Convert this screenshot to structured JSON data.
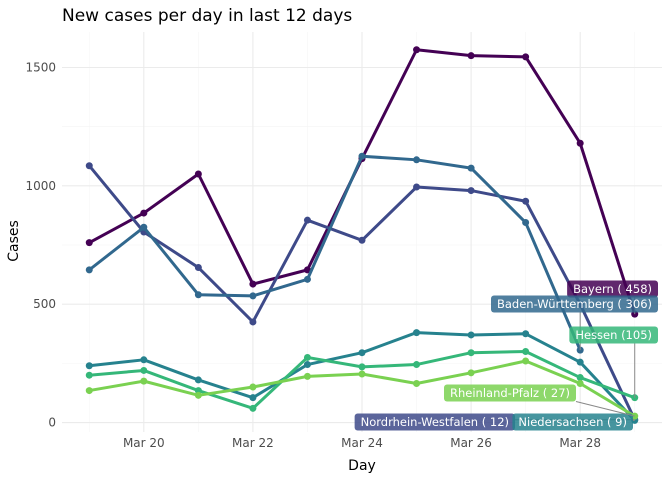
{
  "chart_data": {
    "type": "line",
    "title": "New cases per day in last 12 days",
    "xlabel": "Day",
    "ylabel": "Cases",
    "x": [
      "2020-03-19",
      "2020-03-20",
      "2020-03-21",
      "2020-03-22",
      "2020-03-23",
      "2020-03-24",
      "2020-03-25",
      "2020-03-26",
      "2020-03-27",
      "2020-03-28",
      "2020-03-29"
    ],
    "x_ticks": [
      "2020-03-20",
      "2020-03-22",
      "2020-03-24",
      "2020-03-26",
      "2020-03-28"
    ],
    "x_tick_labels": [
      "Mar 20",
      "Mar 22",
      "Mar 24",
      "Mar 26",
      "Mar 28"
    ],
    "xlim": [
      "2020-03-18T12:00",
      "2020-03-29T12:00"
    ],
    "y_ticks": [
      0,
      500,
      1000,
      1500
    ],
    "y_tick_labels": [
      "0",
      "500",
      "1000",
      "1500"
    ],
    "ylim": [
      -40,
      1650
    ],
    "grid": true,
    "legend": "none",
    "series": [
      {
        "name": "Bayern",
        "color": "#440154",
        "label": "Bayern ( 458)",
        "values": [
          760,
          885,
          1050,
          585,
          645,
          1115,
          1575,
          1550,
          1545,
          1180,
          458
        ]
      },
      {
        "name": "Nordrhein-Westfalen",
        "color": "#3e4a89",
        "label": "Nordrhein-Westfalen (   12)",
        "values": [
          1085,
          805,
          655,
          425,
          855,
          770,
          995,
          980,
          935,
          500,
          12
        ]
      },
      {
        "name": "Baden-Württemberg",
        "color": "#31688e",
        "label": "Baden-Württemberg ( 306)",
        "values": [
          645,
          825,
          540,
          535,
          605,
          1125,
          1110,
          1075,
          845,
          306,
          null
        ]
      },
      {
        "name": "Niedersachsen",
        "color": "#26828e",
        "label": "Niedersachsen (  9)",
        "values": [
          240,
          265,
          180,
          105,
          245,
          295,
          380,
          370,
          375,
          255,
          9
        ]
      },
      {
        "name": "Hessen",
        "color": "#35b779",
        "label": "Hessen (105)",
        "values": [
          200,
          220,
          135,
          60,
          275,
          235,
          245,
          295,
          300,
          190,
          105
        ]
      },
      {
        "name": "Rheinland-Pfalz",
        "color": "#7ad151",
        "label": "Rheinland-Pfalz ( 27)",
        "values": [
          135,
          175,
          115,
          150,
          195,
          205,
          165,
          210,
          260,
          165,
          27
        ]
      }
    ]
  }
}
